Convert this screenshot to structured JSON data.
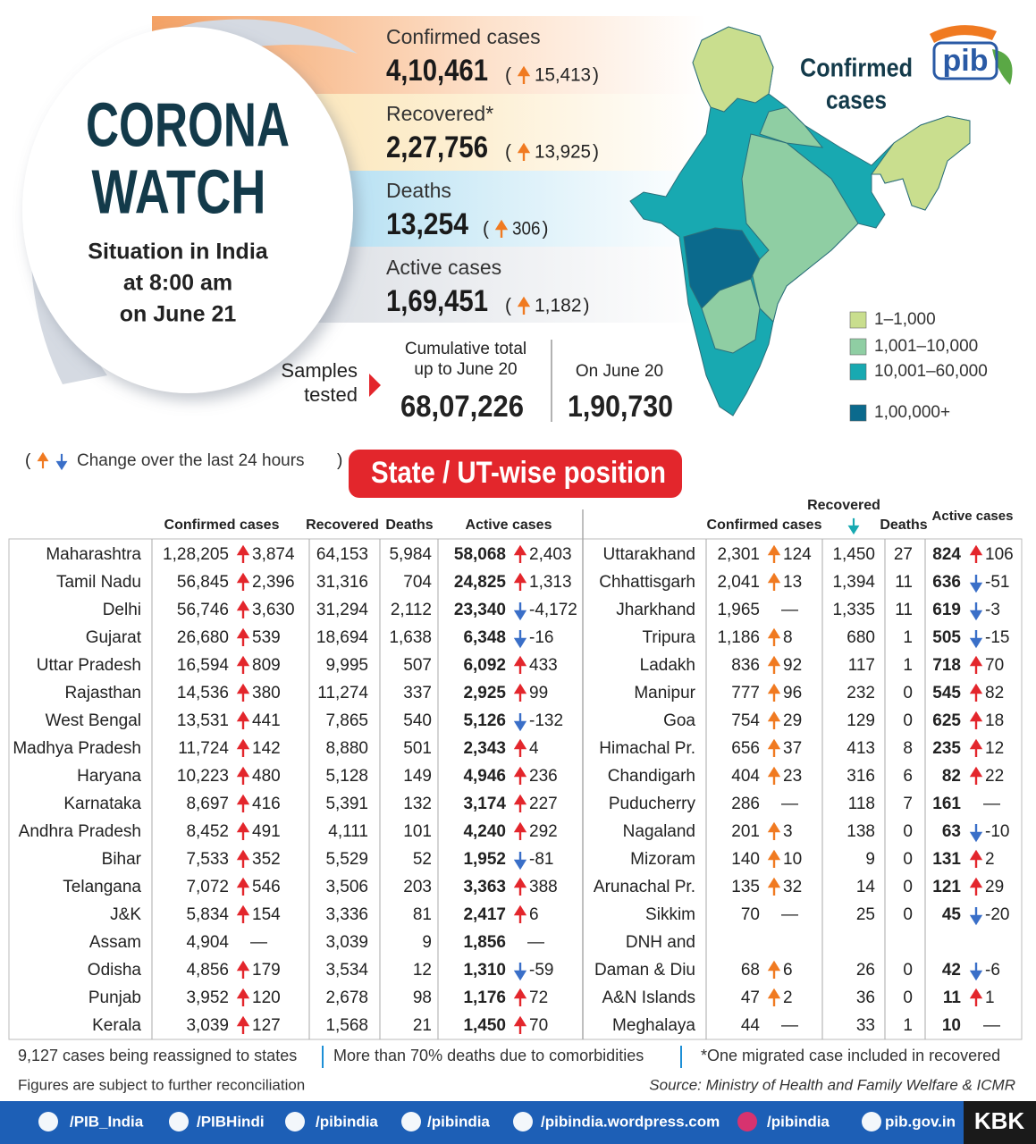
{
  "brackets": [
    "(",
    ")"
  ],
  "header": {
    "title": [
      "CORONA",
      "WATCH"
    ],
    "subtitle": [
      "Situation in India",
      "at 8:00 am",
      "on June 21"
    ]
  },
  "logo": "pib",
  "summary": [
    {
      "label": "Confirmed cases",
      "value": "4,10,461",
      "change": "15,413"
    },
    {
      "label": "Recovered*",
      "value": "2,27,756",
      "change": "13,925"
    },
    {
      "label": "Deaths",
      "value": "13,254",
      "change": "306"
    },
    {
      "label": "Active cases",
      "value": "1,69,451",
      "change": "1,182"
    }
  ],
  "samples": {
    "label": [
      "Samples",
      "tested"
    ],
    "cumulative_label": [
      "Cumulative total",
      "up to June 20"
    ],
    "cumulative_value": "68,07,226",
    "day_label": "On June 20",
    "day_value": "1,90,730"
  },
  "map": {
    "title": [
      "Confirmed",
      "cases"
    ],
    "legend": [
      {
        "label": "1–1,000",
        "color": "#c9de8e"
      },
      {
        "label": "1,001–10,000",
        "color": "#8fcea3"
      },
      {
        "label": "10,001–60,000",
        "color": "#18a9b1"
      },
      {
        "label": "1,00,000+",
        "color": "#0b6a8d"
      }
    ]
  },
  "change_note": "Change over the last 24 hours",
  "section_title": "State / UT-wise position",
  "table": {
    "left": {
      "columns": [
        "Confirmed cases",
        "Recovered",
        "Deaths",
        "Active cases"
      ],
      "rows": [
        [
          "Maharashtra",
          "1,28,205",
          "3,874",
          "64,153",
          "5,984",
          "58,068",
          "2,403"
        ],
        [
          "Tamil Nadu",
          "56,845",
          "2,396",
          "31,316",
          "704",
          "24,825",
          "1,313"
        ],
        [
          "Delhi",
          "56,746",
          "3,630",
          "31,294",
          "2,112",
          "23,340",
          "-4,172"
        ],
        [
          "Gujarat",
          "26,680",
          "539",
          "18,694",
          "1,638",
          "6,348",
          "-16"
        ],
        [
          "Uttar Pradesh",
          "16,594",
          "809",
          "9,995",
          "507",
          "6,092",
          "433"
        ],
        [
          "Rajasthan",
          "14,536",
          "380",
          "11,274",
          "337",
          "2,925",
          "99"
        ],
        [
          "West Bengal",
          "13,531",
          "441",
          "7,865",
          "540",
          "5,126",
          "-132"
        ],
        [
          "Madhya Pradesh",
          "11,724",
          "142",
          "8,880",
          "501",
          "2,343",
          "4"
        ],
        [
          "Haryana",
          "10,223",
          "480",
          "5,128",
          "149",
          "4,946",
          "236"
        ],
        [
          "Karnataka",
          "8,697",
          "416",
          "5,391",
          "132",
          "3,174",
          "227"
        ],
        [
          "Andhra Pradesh",
          "8,452",
          "491",
          "4,111",
          "101",
          "4,240",
          "292"
        ],
        [
          "Bihar",
          "7,533",
          "352",
          "5,529",
          "52",
          "1,952",
          "-81"
        ],
        [
          "Telangana",
          "7,072",
          "546",
          "3,506",
          "203",
          "3,363",
          "388"
        ],
        [
          "J&K",
          "5,834",
          "154",
          "3,336",
          "81",
          "2,417",
          "6"
        ],
        [
          "Assam",
          "4,904",
          "—",
          "3,039",
          "9",
          "1,856",
          "—"
        ],
        [
          "Odisha",
          "4,856",
          "179",
          "3,534",
          "12",
          "1,310",
          "-59"
        ],
        [
          "Punjab",
          "3,952",
          "120",
          "2,678",
          "98",
          "1,176",
          "72"
        ],
        [
          "Kerala",
          "3,039",
          "127",
          "1,568",
          "21",
          "1,450",
          "70"
        ]
      ]
    },
    "right": {
      "columns": [
        "Confirmed cases",
        "Recovered",
        "Deaths",
        "Active cases"
      ],
      "rows": [
        [
          "Uttarakhand",
          "2,301",
          "124",
          "1,450",
          "27",
          "824",
          "106"
        ],
        [
          "Chhattisgarh",
          "2,041",
          "13",
          "1,394",
          "11",
          "636",
          "-51"
        ],
        [
          "Jharkhand",
          "1,965",
          "—",
          "1,335",
          "11",
          "619",
          "-3"
        ],
        [
          "Tripura",
          "1,186",
          "8",
          "680",
          "1",
          "505",
          "-15"
        ],
        [
          "Ladakh",
          "836",
          "92",
          "117",
          "1",
          "718",
          "70"
        ],
        [
          "Manipur",
          "777",
          "96",
          "232",
          "0",
          "545",
          "82"
        ],
        [
          "Goa",
          "754",
          "29",
          "129",
          "0",
          "625",
          "18"
        ],
        [
          "Himachal Pr.",
          "656",
          "37",
          "413",
          "8",
          "235",
          "12"
        ],
        [
          "Chandigarh",
          "404",
          "23",
          "316",
          "6",
          "82",
          "22"
        ],
        [
          "Puducherry",
          "286",
          "—",
          "118",
          "7",
          "161",
          "—"
        ],
        [
          "Nagaland",
          "201",
          "3",
          "138",
          "0",
          "63",
          "-10"
        ],
        [
          "Mizoram",
          "140",
          "10",
          "9",
          "0",
          "131",
          "2"
        ],
        [
          "Arunachal Pr.",
          "135",
          "32",
          "14",
          "0",
          "121",
          "29"
        ],
        [
          "Sikkim",
          "70",
          "—",
          "25",
          "0",
          "45",
          "-20"
        ],
        [
          [
            "DNH and",
            "Daman & Diu"
          ],
          "68",
          "6",
          "26",
          "0",
          "42",
          "-6"
        ],
        [
          "A&N Islands",
          "47",
          "2",
          "36",
          "0",
          "11",
          "1"
        ],
        [
          "Meghalaya",
          "44",
          "—",
          "33",
          "1",
          "10",
          "—"
        ]
      ]
    }
  },
  "footer": {
    "notes": [
      "9,127 cases being reassigned to states",
      "More than 70% deaths due to comorbidities",
      "*One migrated case included in recovered"
    ],
    "disclaimer": "Figures are subject to further reconciliation",
    "source": "Source: Ministry of Health and Family Welfare & ICMR"
  },
  "social": [
    "/PIB_India",
    "/PIBHindi",
    "/pibindia",
    "/pibindia",
    "/pibindia.wordpress.com",
    "/pibindia",
    "pib.gov.in"
  ],
  "brand": "KBK"
}
